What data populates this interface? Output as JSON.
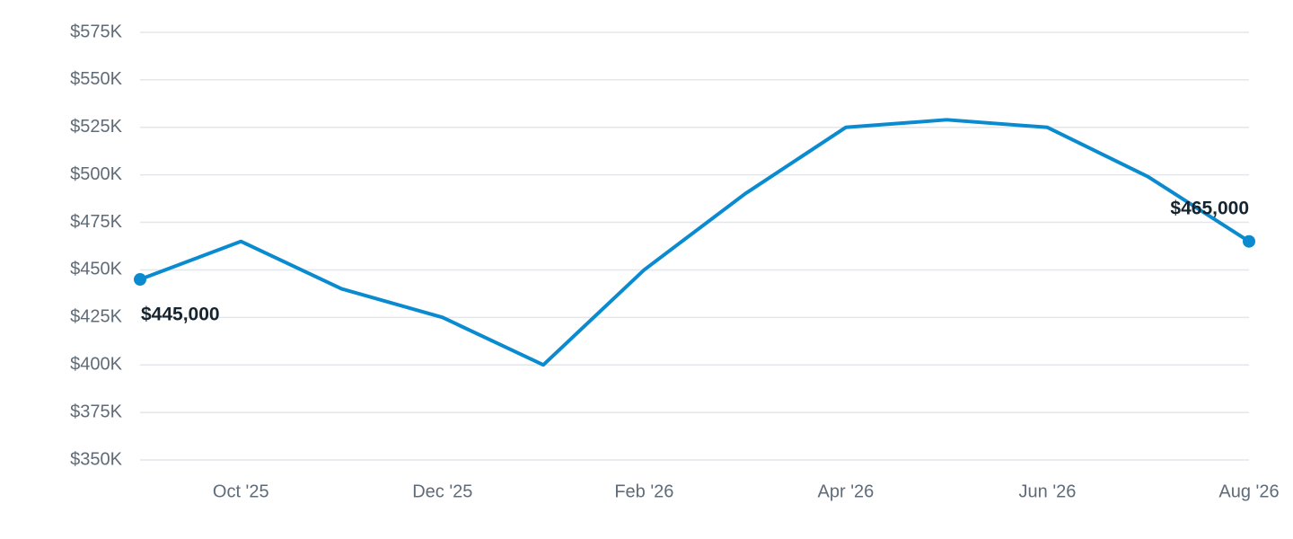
{
  "chart_data": {
    "type": "line",
    "categories": [
      null,
      "Oct '25",
      null,
      "Dec '25",
      null,
      "Feb '26",
      null,
      "Apr '26",
      null,
      "Jun '26",
      null,
      "Aug '26"
    ],
    "values": [
      445000,
      465000,
      440000,
      425000,
      400000,
      450000,
      490000,
      525000,
      529000,
      525000,
      499000,
      465000
    ],
    "value_labels": [
      "$445,000",
      null,
      null,
      null,
      null,
      null,
      null,
      null,
      null,
      null,
      null,
      "$465,000"
    ],
    "color": "#0a8bd0",
    "ylim": [
      350000,
      575000
    ],
    "yticks": [
      {
        "value": 350000,
        "label": "$350K"
      },
      {
        "value": 375000,
        "label": "$375K"
      },
      {
        "value": 400000,
        "label": "$400K"
      },
      {
        "value": 425000,
        "label": "$425K"
      },
      {
        "value": 450000,
        "label": "$450K"
      },
      {
        "value": 475000,
        "label": "$475K"
      },
      {
        "value": 500000,
        "label": "$500K"
      },
      {
        "value": 525000,
        "label": "$525K"
      },
      {
        "value": 550000,
        "label": "$550K"
      },
      {
        "value": 575000,
        "label": "$575K"
      }
    ],
    "grid": true
  }
}
